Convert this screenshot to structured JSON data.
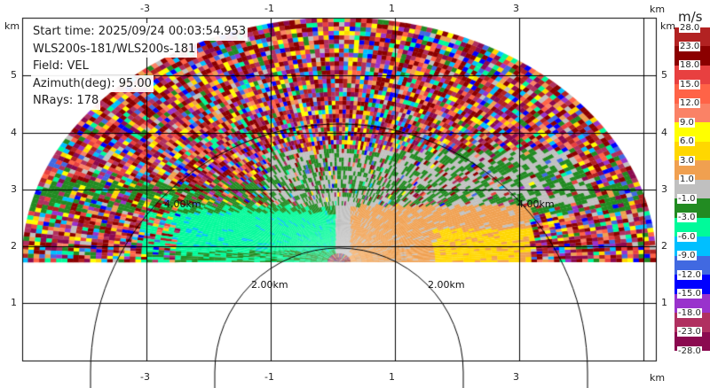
{
  "info": {
    "start_time": "Start time: 2025/09/24 00:03:54.953",
    "instrument": "WLS200s-181/WLS200s-181",
    "field": "Field: VEL",
    "azimuth": "Azimuth(deg): 95.00",
    "nrays": "NRays: 178"
  },
  "chart_data": {
    "type": "heatmap",
    "field": "VEL",
    "azimuth_deg": 95.0,
    "nrays": 178,
    "x_unit": "km",
    "y_unit": "km",
    "x_ticks": [
      "-3",
      "-1",
      "1",
      "3"
    ],
    "y_ticks": [
      "1",
      "2",
      "3",
      "4",
      "5"
    ],
    "xlim": [
      -5,
      5.2
    ],
    "ylim": [
      0,
      6
    ],
    "grid": true,
    "range_rings": [
      "2.00km",
      "4.00km"
    ],
    "colorbar": {
      "unit": "m/s",
      "ticks": [
        "28.0",
        "23.0",
        "18.0",
        "15.0",
        "12.0",
        "9.0",
        "6.0",
        "3.0",
        "1.0",
        "-1.0",
        "-3.0",
        "-6.0",
        "-9.0",
        "-12.0",
        "-15.0",
        "-18.0",
        "-23.0",
        "-28.0"
      ],
      "colors": [
        "#b22222",
        "#8b0000",
        "#e84040",
        "#ff6347",
        "#fa8266",
        "#ffff00",
        "#ffd700",
        "#f0a050",
        "#c0c0c0",
        "#228b22",
        "#00fa9a",
        "#00bfff",
        "#4169e1",
        "#0000ff",
        "#9932cc",
        "#b03060",
        "#8b0a50"
      ]
    }
  }
}
